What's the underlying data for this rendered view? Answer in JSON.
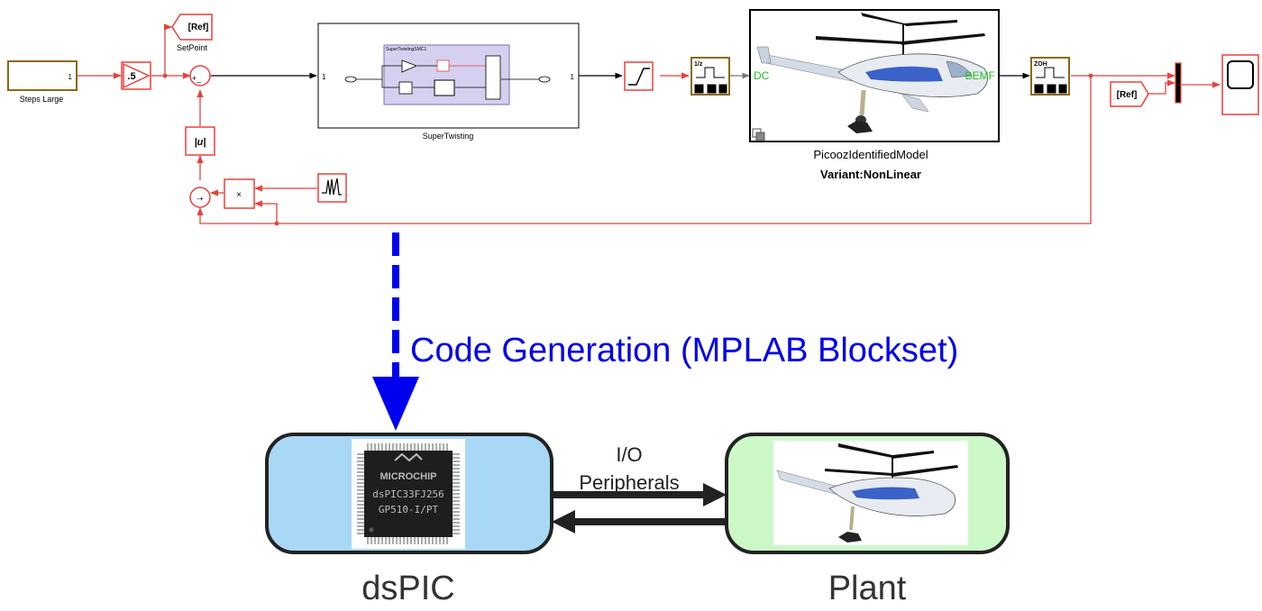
{
  "simulink": {
    "source_block": {
      "value": "1",
      "name": "Steps Large"
    },
    "gain": {
      "value": ".5"
    },
    "goto": {
      "tag": "[Ref]",
      "name": "SetPoint"
    },
    "sum1": {
      "signs": "+_"
    },
    "abs_block": {
      "symbol": "|u|"
    },
    "sum2": {
      "signs": "-+"
    },
    "product": {
      "symbol": "×"
    },
    "controller": {
      "in_port": "1",
      "out_port": "1",
      "inner_title": "SuperTwistingSMC1",
      "name": "SuperTwisting"
    },
    "zoh1": {
      "label": "1/z"
    },
    "plant": {
      "in_port": "DC",
      "out_port": "BEMF",
      "name": "PicoozIdentifiedModel",
      "variant": "Variant:NonLinear"
    },
    "zoh2": {
      "label": "ZOH"
    },
    "from": {
      "tag": "[Ref]"
    }
  },
  "codegen": {
    "label": "Code Generation (MPLAB Blockset)"
  },
  "hardware": {
    "dspic": {
      "name": "dsPIC",
      "chip_brand": "MICROCHIP",
      "chip_part1": "dsPIC33FJ256",
      "chip_part2": "GP510-I/PT"
    },
    "io_label_1": "I/O",
    "io_label_2": "Peripherals",
    "plant": {
      "name": "Plant"
    }
  },
  "colors": {
    "signal_line": "#e8413c",
    "block_border": "#e8413c",
    "source_border": "#8b6914",
    "arrow_blue": "#0000ee",
    "dspic_fill": "#a8d8f6",
    "plant_fill": "#ccf8c8",
    "port_green": "#22c022"
  }
}
